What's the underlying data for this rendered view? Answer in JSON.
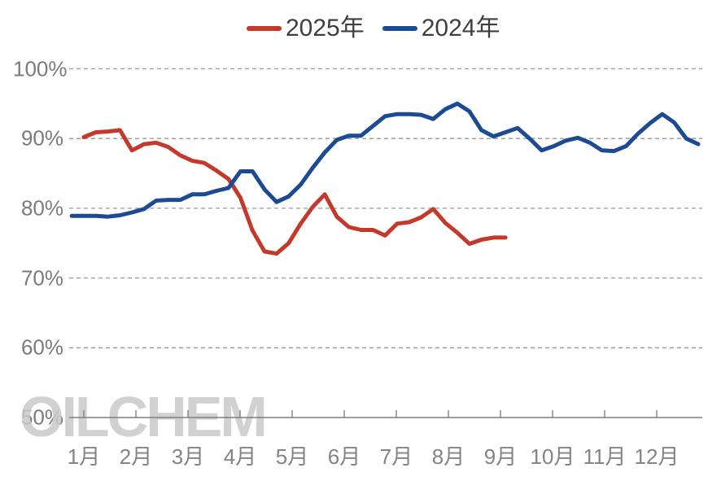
{
  "watermark": {
    "text": "OILCHEM",
    "color": "#c9c9c9"
  },
  "chart_data": {
    "type": "line",
    "title": "",
    "x_axis": {
      "tick_labels": [
        "1月",
        "2月",
        "3月",
        "4月",
        "5月",
        "6月",
        "7月",
        "8月",
        "9月",
        "10月",
        "11月",
        "12月"
      ],
      "resolution": "weekly"
    },
    "y_axis": {
      "tick_labels": [
        "100%",
        "90%",
        "80%",
        "70%",
        "60%",
        "50%"
      ],
      "tick_values": [
        100,
        90,
        80,
        70,
        60,
        50
      ],
      "min": 50,
      "max": 100,
      "unit": "%",
      "gridlines": "dashed"
    },
    "legend_position": "top-center",
    "series": [
      {
        "name": "2025年",
        "color": "#C5392C",
        "start_week_offset": 1,
        "values": [
          90.2,
          90.9,
          91.0,
          91.2,
          88.3,
          89.2,
          89.4,
          88.8,
          87.6,
          86.8,
          86.5,
          85.4,
          84.2,
          81.5,
          76.8,
          73.8,
          73.5,
          75.0,
          77.8,
          80.2,
          82.0,
          78.8,
          77.3,
          76.9,
          76.9,
          76.1,
          77.8,
          78.0,
          78.7,
          79.9,
          77.9,
          76.5,
          74.9,
          75.5,
          75.8,
          75.8
        ]
      },
      {
        "name": "2024年",
        "color": "#1C4B94",
        "start_week_offset": 0,
        "values": [
          78.9,
          78.9,
          78.9,
          78.8,
          79.0,
          79.4,
          79.9,
          81.1,
          81.2,
          81.2,
          82.0,
          82.0,
          82.5,
          82.9,
          85.3,
          85.3,
          82.7,
          80.9,
          81.7,
          83.4,
          85.8,
          88.0,
          89.8,
          90.4,
          90.4,
          91.8,
          93.2,
          93.5,
          93.5,
          93.4,
          92.8,
          94.2,
          95.0,
          93.9,
          91.2,
          90.3,
          90.9,
          91.5,
          90.0,
          88.3,
          88.9,
          89.7,
          90.1,
          89.4,
          88.3,
          88.2,
          88.9,
          90.7,
          92.2,
          93.5,
          92.3,
          90.0,
          89.2
        ]
      }
    ]
  },
  "style": {
    "gridline_color": "#9a9a9a",
    "axis_color": "#7f7f7f",
    "label_color": "#7b7b7b"
  }
}
